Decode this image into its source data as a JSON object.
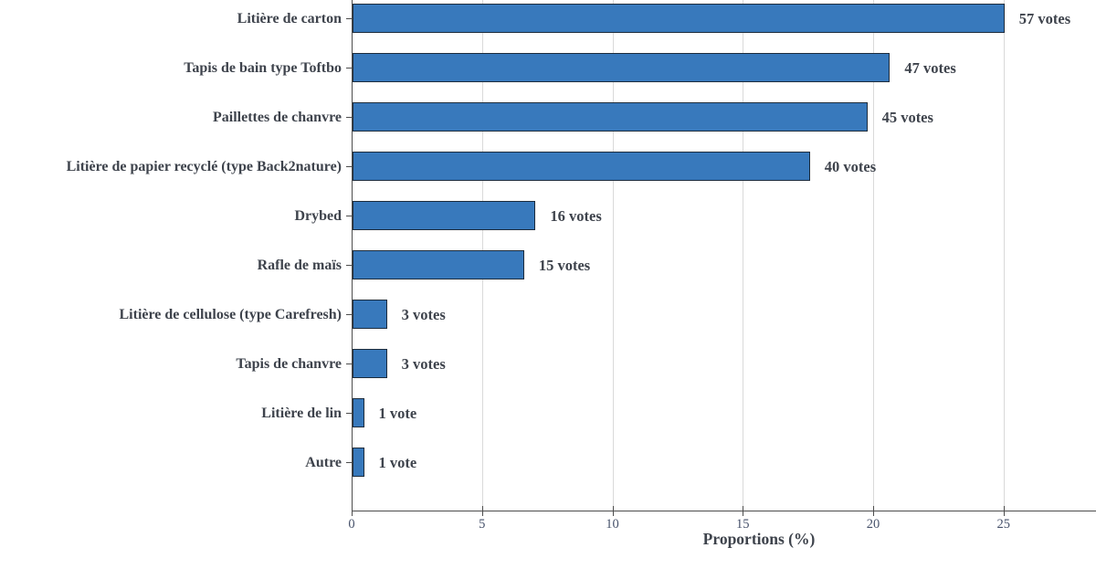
{
  "chart_data": {
    "type": "bar",
    "orientation": "horizontal",
    "title": "",
    "xlabel": "Proportions (%)",
    "ylabel": "",
    "categories": [
      "Litière de carton",
      "Tapis de bain type Toftbo",
      "Paillettes de chanvre",
      "Litière de papier recyclé (type Back2nature)",
      "Drybed",
      "Rafle de maïs",
      "Litière de cellulose (type Carefresh)",
      "Tapis de chanvre",
      "Litière de lin",
      "Autre"
    ],
    "votes": [
      57,
      47,
      45,
      40,
      16,
      15,
      3,
      3,
      1,
      1
    ],
    "proportions": [
      25.0,
      20.61,
      19.74,
      17.54,
      7.02,
      6.58,
      1.32,
      1.32,
      0.44,
      0.44
    ],
    "value_labels": [
      "57 votes",
      "47 votes",
      "45 votes",
      "40 votes",
      "16 votes",
      "15 votes",
      "3 votes",
      "3 votes",
      "1 vote",
      "1 vote"
    ],
    "xticks": [
      0,
      5,
      10,
      15,
      20,
      25
    ],
    "xtick_labels": [
      "0",
      "5",
      "10",
      "15",
      "20",
      "25"
    ],
    "xlim": [
      0,
      28.6
    ],
    "grid": true,
    "legend": false
  },
  "colors": {
    "bar_fill": "#3879BC",
    "bar_edge": "#1D2C3C",
    "gridline": "#d9d9d9",
    "axis": "#4d4d4d",
    "label_text": "#3E434C",
    "tick_text": "#47526B",
    "background": "#ffffff"
  }
}
